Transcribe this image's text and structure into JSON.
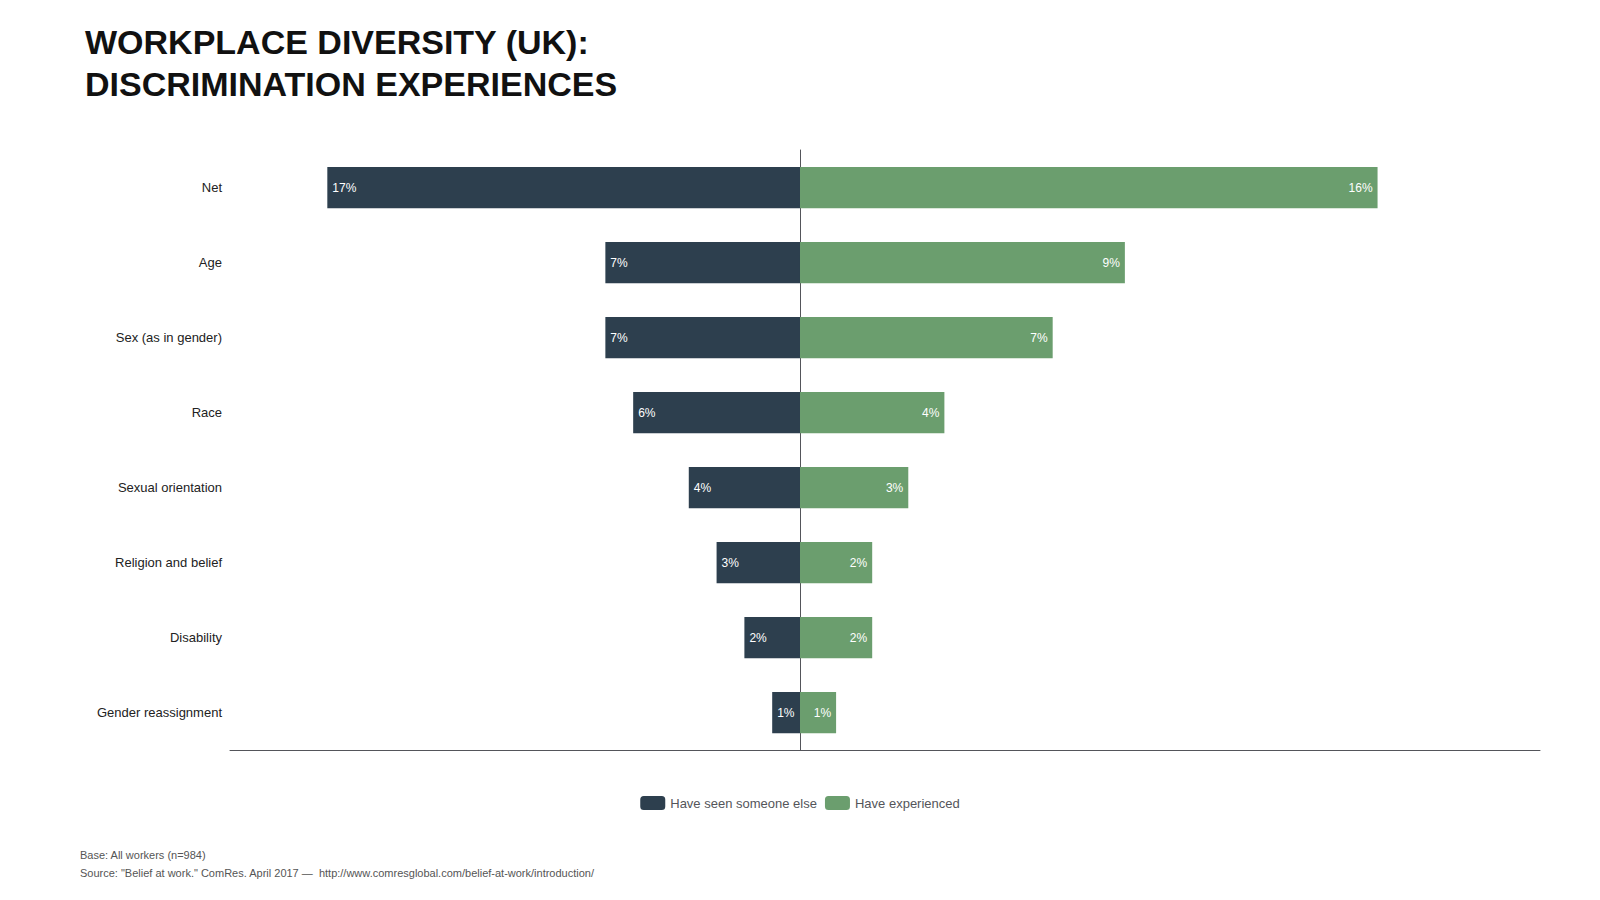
{
  "chart_data": {
    "type": "bar",
    "orientation": "horizontal",
    "title": "WORKPLACE DIVERSITY (UK):",
    "subtitle": "DISCRIMINATION EXPERIENCES",
    "annotations": [
      "Base: All workers (n=984)",
      "Source: \"Belief at work.\" ComRes. April 2017 —  http://www.comresglobal.com/belief-at-work/introduction/"
    ],
    "categories": [
      "Net",
      "Age",
      "Sex (as in gender)",
      "Race",
      "Sexual orientation",
      "Religion and belief",
      "Disability",
      "Gender reassignment"
    ],
    "series": [
      {
        "name": "Have seen someone else",
        "color": "#2d3f4e",
        "values": [
          17,
          7,
          7,
          6,
          4,
          3,
          2,
          1
        ],
        "value_labels": [
          "17%",
          "7%",
          "7%",
          "6%",
          "4%",
          "3%",
          "2%",
          "1%"
        ]
      },
      {
        "name": "Have experienced",
        "color": "#6b9e6e",
        "values": [
          16,
          9,
          7,
          4,
          3,
          2,
          2,
          1
        ],
        "value_labels": [
          "16%",
          "9%",
          "7%",
          "4%",
          "3%",
          "2%",
          "2%",
          "1%"
        ]
      }
    ],
    "xlim": [
      0,
      20.5
    ],
    "data_labels": true,
    "tick_labels": "y",
    "grid": false,
    "legend": "bottom"
  }
}
